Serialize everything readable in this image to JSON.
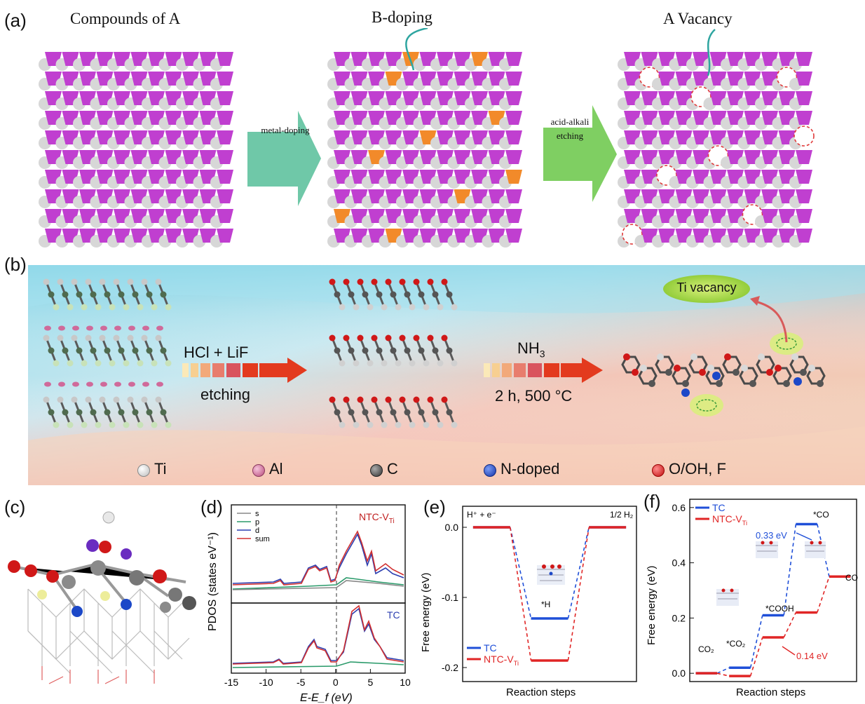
{
  "panel_a": {
    "label": "(a)",
    "titles": [
      "Compounds of  A",
      "B-doping",
      "A Vacancy"
    ],
    "arrow1_label": "metal-doping",
    "arrow2_label": "acid-alkali etching",
    "colors": {
      "lattice": "#c03fd0",
      "atom": "#d7d7d7",
      "dopant": "#f28a2a",
      "vacancy": "#e03a3a",
      "arrow1": "#6fc8a8",
      "arrow2": "#7fcf62"
    }
  },
  "panel_b": {
    "label": "(b)",
    "step1_top": "HCl + LiF",
    "step1_bottom": "etching",
    "step2_top_main": "NH",
    "step2_top_sub": "3",
    "step2_bottom": "2 h, 500 °C",
    "callout": "Ti vacancy",
    "legend": [
      "Ti",
      "Al",
      "C",
      "N-doped",
      "O/OH, F"
    ],
    "colors": {
      "Ti": "#d9d9d9",
      "Al": "#d06a9a",
      "C": "#555555",
      "N-doped": "#1c48c8",
      "O/OH, F": "#d01818",
      "arrow": "#e33a1e"
    }
  },
  "panel_c": {
    "label": "(c)"
  },
  "panel_d": {
    "label": "(d)",
    "ylabel": "PDOS (states eV⁻¹)",
    "xlabel": "E-E_f (eV)",
    "top_title": "NTC-V",
    "top_title_sub": "Ti",
    "bottom_title": "TC",
    "legend": [
      "s",
      "p",
      "d",
      "sum"
    ],
    "xticks": [
      "-15",
      "-10",
      "-5",
      "0",
      "5",
      "10"
    ]
  },
  "panel_e": {
    "label": "(e)",
    "ylabel": "Free energy (eV)",
    "xlabel": "Reaction steps",
    "yticks": [
      "0.0",
      "-0.1",
      "-0.2"
    ],
    "state_labels": [
      "H⁺ + e⁻",
      "*H",
      "1/2 H₂"
    ],
    "legend": [
      "TC",
      "NTC-V"
    ],
    "legend_sub": "Ti"
  },
  "panel_f": {
    "label": "(f)",
    "ylabel": "Free energy (eV)",
    "xlabel": "Reaction steps",
    "yticks": [
      "0.6",
      "0.4",
      "0.2",
      "0.0"
    ],
    "state_labels": [
      "CO₂",
      "*CO₂",
      "*COOH",
      "*CO",
      "CO"
    ],
    "annotations": [
      "0.33 eV",
      "0.14 eV"
    ],
    "legend": [
      "TC",
      "NTC-V"
    ],
    "legend_sub": "Ti"
  },
  "chart_data": [
    {
      "type": "line",
      "panel": "e",
      "ylabel": "Free energy (eV)",
      "xlabel": "Reaction steps",
      "categories": [
        "H⁺ + e⁻",
        "*H",
        "1/2 H₂"
      ],
      "ylim": [
        -0.22,
        0.03
      ],
      "series": [
        {
          "name": "TC",
          "values": [
            0.0,
            -0.13,
            0.0
          ],
          "color": "#1f4fd8"
        },
        {
          "name": "NTC-V_Ti",
          "values": [
            0.0,
            -0.19,
            0.0
          ],
          "color": "#e02525"
        }
      ]
    },
    {
      "type": "line",
      "panel": "f",
      "ylabel": "Free energy (eV)",
      "xlabel": "Reaction steps",
      "categories": [
        "CO₂",
        "*CO₂",
        "*COOH",
        "*CO",
        "CO"
      ],
      "ylim": [
        -0.03,
        0.63
      ],
      "series": [
        {
          "name": "TC",
          "values": [
            0.0,
            0.02,
            0.21,
            0.54,
            0.35
          ],
          "color": "#1f4fd8"
        },
        {
          "name": "NTC-V_Ti",
          "values": [
            0.0,
            -0.01,
            0.13,
            0.22,
            0.35
          ],
          "color": "#e02525"
        }
      ]
    },
    {
      "type": "line",
      "panel": "d",
      "xlabel": "E-E_f (eV)",
      "ylabel": "PDOS (states eV⁻¹)",
      "xlim": [
        -15,
        10
      ],
      "subplots": [
        "NTC-V_Ti",
        "TC"
      ]
    }
  ]
}
